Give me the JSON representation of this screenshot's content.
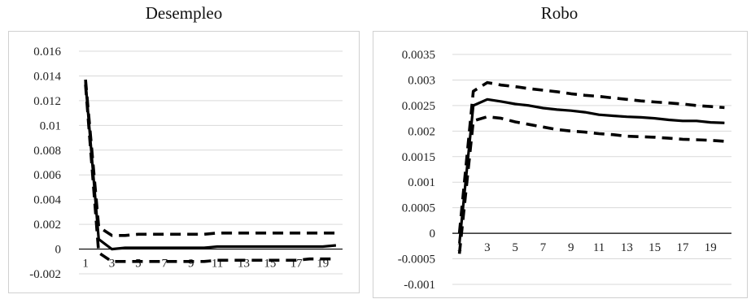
{
  "chart_data": [
    {
      "type": "line",
      "title": "Desempleo",
      "xlabel": "",
      "ylabel": "",
      "ylim": [
        -0.002,
        0.016
      ],
      "yticks": [
        "0.016",
        "0.014",
        "0.012",
        "0.01",
        "0.008",
        "0.006",
        "0.004",
        "0.002",
        "0",
        "-0.002"
      ],
      "ytick_values": [
        0.016,
        0.014,
        0.012,
        0.01,
        0.008,
        0.006,
        0.004,
        0.002,
        0,
        -0.002
      ],
      "xticks": [
        "1",
        "3",
        "5",
        "7",
        "9",
        "11",
        "13",
        "15",
        "17",
        "19"
      ],
      "xtick_values": [
        1,
        3,
        5,
        7,
        9,
        11,
        13,
        15,
        17,
        19
      ],
      "xlim": [
        0.5,
        20.5
      ],
      "grid": true,
      "legend": "none",
      "series": [
        {
          "style": "solid",
          "x": [
            1,
            2,
            3,
            4,
            5,
            6,
            7,
            8,
            9,
            10,
            11,
            12,
            13,
            14,
            15,
            16,
            17,
            18,
            19,
            20
          ],
          "values": [
            0.0135,
            0.0008,
            0.0,
            0.0001,
            0.0001,
            0.0001,
            0.0001,
            0.0001,
            0.0001,
            0.0001,
            0.0002,
            0.0002,
            0.0002,
            0.0002,
            0.0002,
            0.0002,
            0.0002,
            0.0002,
            0.0002,
            0.0003
          ]
        },
        {
          "style": "dashed",
          "x": [
            1,
            2,
            3,
            4,
            5,
            6,
            7,
            8,
            9,
            10,
            11,
            12,
            13,
            14,
            15,
            16,
            17,
            18,
            19,
            20
          ],
          "values": [
            0.0137,
            0.0018,
            0.0011,
            0.0011,
            0.0012,
            0.0012,
            0.0012,
            0.0012,
            0.0012,
            0.0012,
            0.0013,
            0.0013,
            0.0013,
            0.0013,
            0.0013,
            0.0013,
            0.0013,
            0.0013,
            0.0013,
            0.0013
          ]
        },
        {
          "style": "dashed",
          "x": [
            1,
            2,
            3,
            4,
            5,
            6,
            7,
            8,
            9,
            10,
            11,
            12,
            13,
            14,
            15,
            16,
            17,
            18,
            19,
            20
          ],
          "values": [
            0.0133,
            -0.0003,
            -0.001,
            -0.001,
            -0.001,
            -0.001,
            -0.001,
            -0.001,
            -0.001,
            -0.001,
            -0.0009,
            -0.0009,
            -0.0009,
            -0.0009,
            -0.0009,
            -0.0009,
            -0.0009,
            -0.0008,
            -0.0008,
            -0.0008
          ]
        }
      ]
    },
    {
      "type": "line",
      "title": "Robo",
      "xlabel": "",
      "ylabel": "",
      "ylim": [
        -0.001,
        0.0035
      ],
      "yticks": [
        "0.0035",
        "0.003",
        "0.0025",
        "0.002",
        "0.0015",
        "0.001",
        "0.0005",
        "0",
        "-0.0005",
        "-0.001"
      ],
      "ytick_values": [
        0.0035,
        0.003,
        0.0025,
        0.002,
        0.0015,
        0.001,
        0.0005,
        0,
        -0.0005,
        -0.001
      ],
      "xticks": [
        "1",
        "3",
        "5",
        "7",
        "9",
        "11",
        "13",
        "15",
        "17",
        "19"
      ],
      "xtick_values": [
        1,
        3,
        5,
        7,
        9,
        11,
        13,
        15,
        17,
        19
      ],
      "xlim": [
        0.5,
        20.5
      ],
      "grid": true,
      "legend": "none",
      "series": [
        {
          "style": "solid",
          "x": [
            1,
            2,
            3,
            4,
            5,
            6,
            7,
            8,
            9,
            10,
            11,
            12,
            13,
            14,
            15,
            16,
            17,
            18,
            19,
            20
          ],
          "values": [
            -0.0002,
            0.0025,
            0.00262,
            0.00258,
            0.00253,
            0.0025,
            0.00245,
            0.00242,
            0.0024,
            0.00237,
            0.00232,
            0.0023,
            0.00228,
            0.00227,
            0.00225,
            0.00222,
            0.0022,
            0.0022,
            0.00217,
            0.00216
          ]
        },
        {
          "style": "dashed",
          "x": [
            1,
            2,
            3,
            4,
            5,
            6,
            7,
            8,
            9,
            10,
            11,
            12,
            13,
            14,
            15,
            16,
            17,
            18,
            19,
            20
          ],
          "values": [
            0.0,
            0.00278,
            0.00295,
            0.0029,
            0.00287,
            0.00283,
            0.0028,
            0.00277,
            0.00273,
            0.0027,
            0.00268,
            0.00265,
            0.00262,
            0.00259,
            0.00257,
            0.00255,
            0.00253,
            0.0025,
            0.00248,
            0.00246
          ]
        },
        {
          "style": "dashed",
          "x": [
            1,
            2,
            3,
            4,
            5,
            6,
            7,
            8,
            9,
            10,
            11,
            12,
            13,
            14,
            15,
            16,
            17,
            18,
            19,
            20
          ],
          "values": [
            -0.0004,
            0.0022,
            0.00228,
            0.00225,
            0.00218,
            0.00213,
            0.00208,
            0.00203,
            0.002,
            0.00198,
            0.00195,
            0.00193,
            0.0019,
            0.00189,
            0.00188,
            0.00186,
            0.00184,
            0.00183,
            0.00182,
            0.0018
          ]
        }
      ]
    }
  ]
}
